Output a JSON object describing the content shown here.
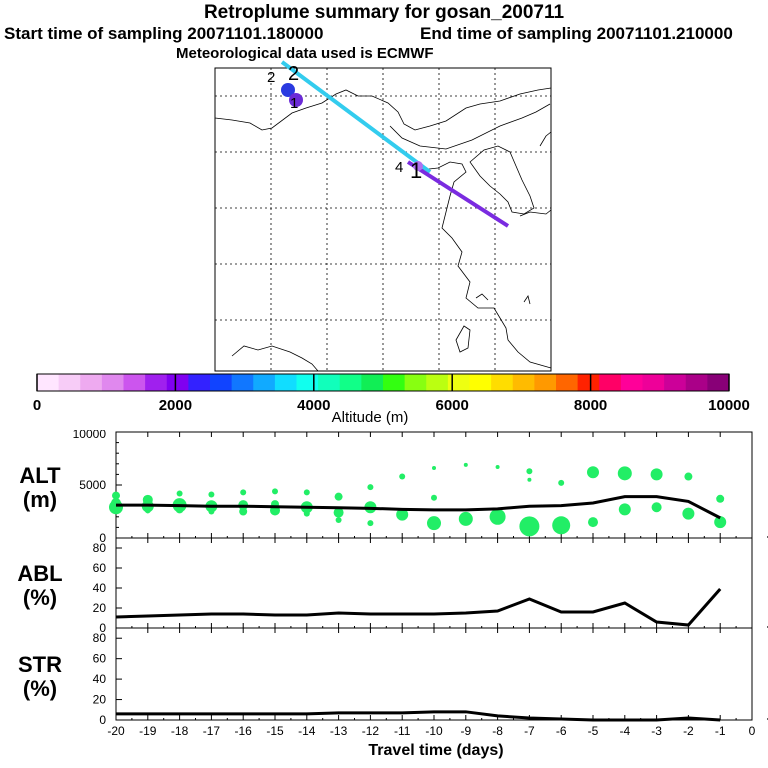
{
  "header": {
    "title": "Retroplume summary for gosan_200711",
    "start_time": "Start time of sampling 20071101.180000",
    "end_time": "End time of sampling 20071101.210000",
    "met_data": "Meteorological data used is ECMWF"
  },
  "map": {
    "plume_labels": [
      "2",
      "2",
      "1",
      "4",
      "1"
    ],
    "colors": {
      "trajectory_cyan": "#33ccee",
      "trajectory_purple": "#7a2be0",
      "marker_blue": "#2a3ae0",
      "marker_purple": "#6b2bd6"
    }
  },
  "colorbar": {
    "ticks": [
      "0",
      "2000",
      "4000",
      "6000",
      "8000",
      "10000"
    ],
    "label": "Altitude (m)",
    "colors": [
      "#ffe6ff",
      "#f7ccf7",
      "#eeaaf0",
      "#e088ee",
      "#cc55ee",
      "#a020ee",
      "#8000f0",
      "#3322ff",
      "#1144ff",
      "#1177ff",
      "#11aaff",
      "#11ddff",
      "#11ffee",
      "#11ffbb",
      "#11ff88",
      "#11ee55",
      "#33ff11",
      "#88ff11",
      "#bbff11",
      "#eeff11",
      "#ffff00",
      "#ffdd00",
      "#ffbb00",
      "#ff9900",
      "#ff6600",
      "#ff2200",
      "#ff0066",
      "#ff0099",
      "#ee0099",
      "#cc0099",
      "#aa0088",
      "#880077"
    ]
  },
  "chart_data": [
    {
      "type": "scatter",
      "title": "ALT (m)",
      "ylabel_line1": "ALT",
      "ylabel_line2": "(m)",
      "ylim": [
        0,
        10000
      ],
      "yticks": [
        "10000",
        "5000",
        "0"
      ],
      "xlim": [
        -20,
        0
      ],
      "line": {
        "x": [
          -20,
          -19,
          -18,
          -17,
          -16,
          -15,
          -14,
          -13,
          -12,
          -11,
          -10,
          -9,
          -8,
          -7,
          -6,
          -5,
          -4,
          -3,
          -2,
          -1
        ],
        "y": [
          3100,
          3100,
          3050,
          3000,
          3000,
          2950,
          2900,
          2850,
          2800,
          2700,
          2650,
          2650,
          2750,
          3000,
          3050,
          3300,
          3900,
          3900,
          3450,
          1900
        ]
      },
      "points": [
        {
          "x": -20,
          "y": 4000,
          "s": 4
        },
        {
          "x": -20,
          "y": 2900,
          "s": 7
        },
        {
          "x": -20,
          "y": 3300,
          "s": 5
        },
        {
          "x": -19,
          "y": 3600,
          "s": 5
        },
        {
          "x": -19,
          "y": 3000,
          "s": 6
        },
        {
          "x": -19,
          "y": 2600,
          "s": 3
        },
        {
          "x": -18,
          "y": 4200,
          "s": 3
        },
        {
          "x": -18,
          "y": 3100,
          "s": 7
        },
        {
          "x": -18,
          "y": 2700,
          "s": 4
        },
        {
          "x": -17,
          "y": 4100,
          "s": 3
        },
        {
          "x": -17,
          "y": 3000,
          "s": 6
        },
        {
          "x": -17,
          "y": 2500,
          "s": 3
        },
        {
          "x": -16,
          "y": 4300,
          "s": 3
        },
        {
          "x": -16,
          "y": 3100,
          "s": 5
        },
        {
          "x": -16,
          "y": 2500,
          "s": 4
        },
        {
          "x": -15,
          "y": 4400,
          "s": 3
        },
        {
          "x": -15,
          "y": 3200,
          "s": 4
        },
        {
          "x": -15,
          "y": 2600,
          "s": 5
        },
        {
          "x": -14,
          "y": 4300,
          "s": 3
        },
        {
          "x": -14,
          "y": 2900,
          "s": 6
        },
        {
          "x": -14,
          "y": 2300,
          "s": 3
        },
        {
          "x": -13,
          "y": 3900,
          "s": 4
        },
        {
          "x": -13,
          "y": 2400,
          "s": 5
        },
        {
          "x": -13,
          "y": 1700,
          "s": 3
        },
        {
          "x": -12,
          "y": 4800,
          "s": 3
        },
        {
          "x": -12,
          "y": 2900,
          "s": 6
        },
        {
          "x": -12,
          "y": 1400,
          "s": 3
        },
        {
          "x": -11,
          "y": 5800,
          "s": 3
        },
        {
          "x": -11,
          "y": 2200,
          "s": 6
        },
        {
          "x": -10,
          "y": 6600,
          "s": 2
        },
        {
          "x": -10,
          "y": 3800,
          "s": 3
        },
        {
          "x": -10,
          "y": 1400,
          "s": 7
        },
        {
          "x": -9,
          "y": 6900,
          "s": 2
        },
        {
          "x": -9,
          "y": 1800,
          "s": 7
        },
        {
          "x": -8,
          "y": 6700,
          "s": 2
        },
        {
          "x": -8,
          "y": 2000,
          "s": 8
        },
        {
          "x": -7,
          "y": 6300,
          "s": 3
        },
        {
          "x": -7,
          "y": 5500,
          "s": 2
        },
        {
          "x": -7,
          "y": 1100,
          "s": 10
        },
        {
          "x": -6,
          "y": 5200,
          "s": 3
        },
        {
          "x": -6,
          "y": 1200,
          "s": 9
        },
        {
          "x": -5,
          "y": 6200,
          "s": 6
        },
        {
          "x": -5,
          "y": 1500,
          "s": 5
        },
        {
          "x": -4,
          "y": 6100,
          "s": 7
        },
        {
          "x": -4,
          "y": 2700,
          "s": 6
        },
        {
          "x": -3,
          "y": 6000,
          "s": 6
        },
        {
          "x": -3,
          "y": 2900,
          "s": 5
        },
        {
          "x": -2,
          "y": 5800,
          "s": 4
        },
        {
          "x": -2,
          "y": 2300,
          "s": 6
        },
        {
          "x": -1,
          "y": 3700,
          "s": 4
        },
        {
          "x": -1,
          "y": 1500,
          "s": 6
        }
      ]
    },
    {
      "type": "line",
      "title": "ABL (%)",
      "ylabel_line1": "ABL",
      "ylabel_line2": "(%)",
      "ylim": [
        0,
        90
      ],
      "yticks": [
        "80",
        "60",
        "40",
        "20",
        "0"
      ],
      "x": [
        -20,
        -19,
        -18,
        -17,
        -16,
        -15,
        -14,
        -13,
        -12,
        -11,
        -10,
        -9,
        -8,
        -7,
        -6,
        -5,
        -4,
        -3,
        -2,
        -1
      ],
      "y": [
        11,
        12,
        13,
        14,
        14,
        13,
        13,
        15,
        14,
        14,
        14,
        15,
        17,
        29,
        16,
        16,
        25,
        6,
        3,
        39
      ]
    },
    {
      "type": "line",
      "title": "STR (%)",
      "ylabel_line1": "STR",
      "ylabel_line2": "(%)",
      "ylim": [
        0,
        90
      ],
      "yticks": [
        "80",
        "60",
        "40",
        "20",
        "0"
      ],
      "x": [
        -20,
        -19,
        -18,
        -17,
        -16,
        -15,
        -14,
        -13,
        -12,
        -11,
        -10,
        -9,
        -8,
        -7,
        -6,
        -5,
        -4,
        -3,
        -2,
        -1
      ],
      "y": [
        6,
        6,
        6,
        6,
        6,
        6,
        6,
        7,
        7,
        7,
        8,
        8,
        4,
        2,
        1,
        0,
        0,
        0,
        2,
        0
      ],
      "xticks": [
        "-20",
        "-19",
        "-18",
        "-17",
        "-16",
        "-15",
        "-14",
        "-13",
        "-12",
        "-11",
        "-10",
        "-9",
        "-8",
        "-7",
        "-6",
        "-5",
        "-4",
        "-3",
        "-2",
        "-1",
        "0"
      ],
      "xlabel": "Travel time (days)"
    }
  ]
}
